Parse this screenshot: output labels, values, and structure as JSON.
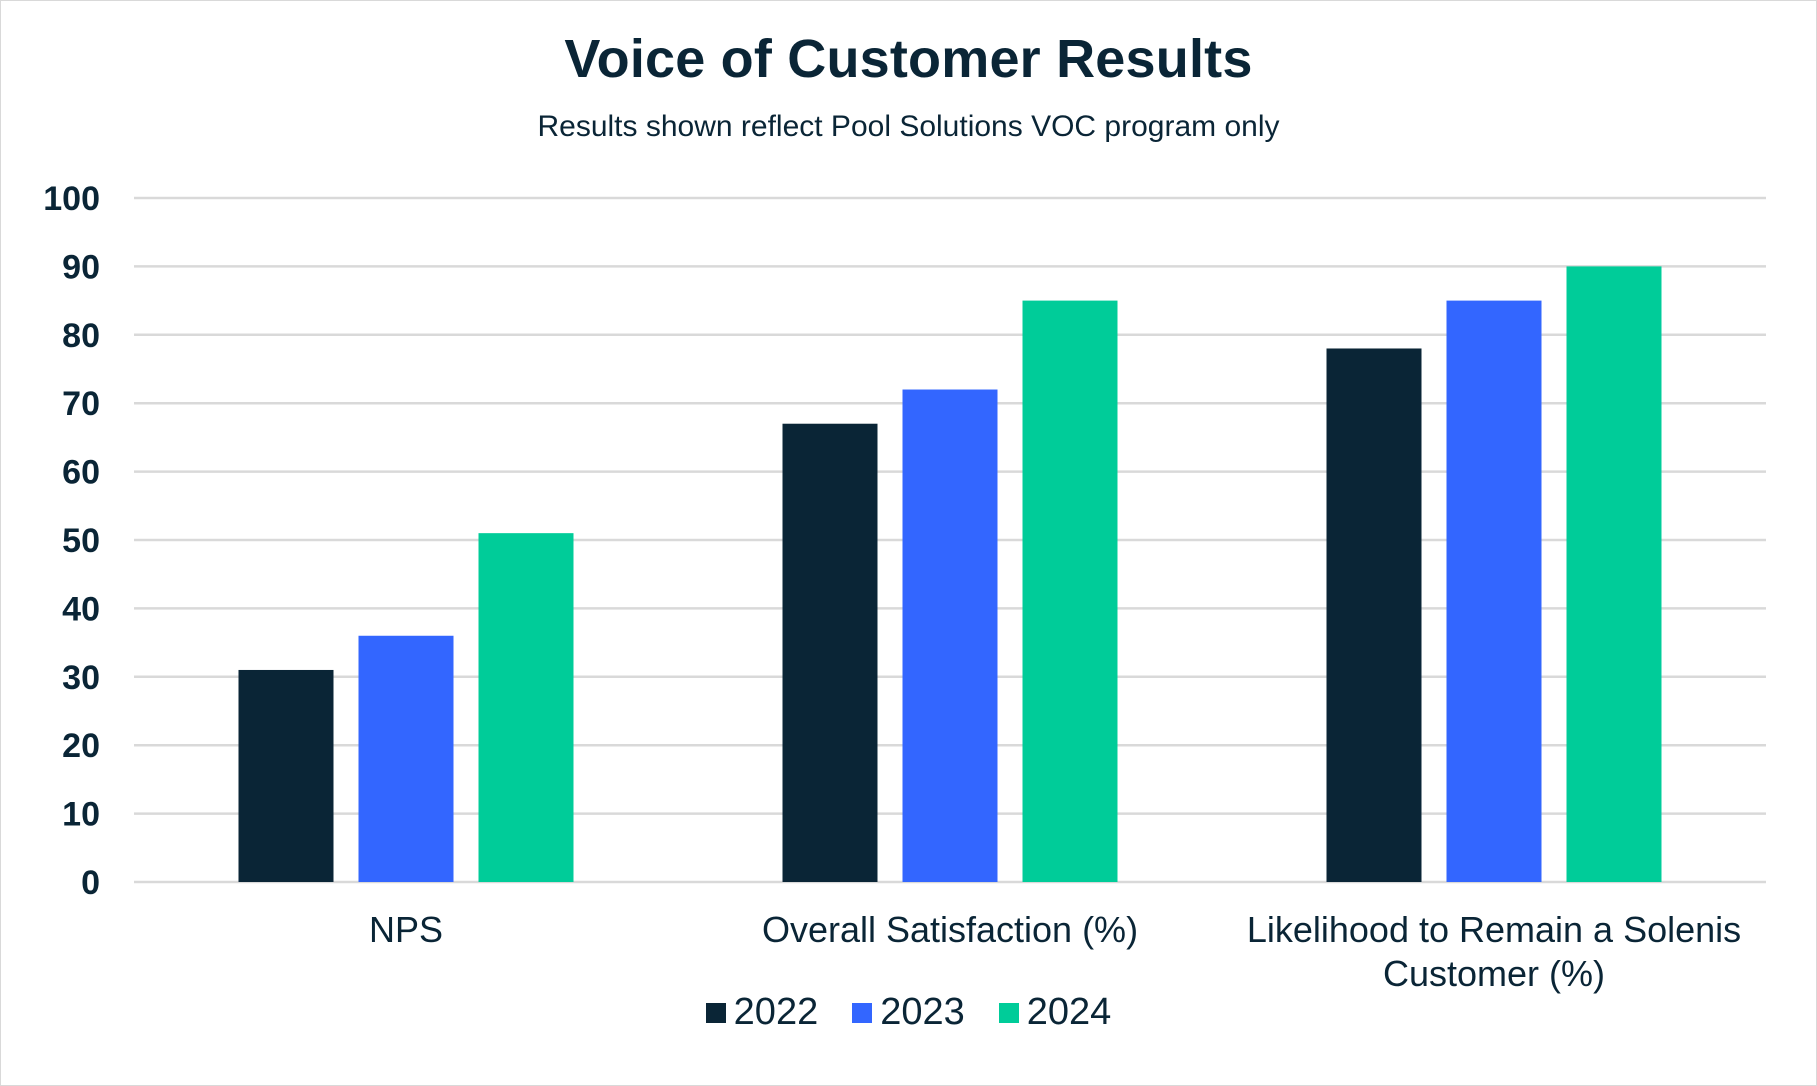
{
  "chart_data": {
    "type": "bar",
    "title": "Voice of Customer Results",
    "subtitle": "Results shown reflect Pool Solutions VOC program only",
    "categories": [
      "NPS",
      "Overall Satisfaction (%)",
      "Likelihood to Remain a Solenis Customer (%)"
    ],
    "category_label_lines": [
      [
        "NPS"
      ],
      [
        "Overall Satisfaction (%)"
      ],
      [
        "Likelihood to Remain a Solenis",
        "Customer (%)"
      ]
    ],
    "series": [
      {
        "name": "2022",
        "color": "#0a2536",
        "values": [
          31,
          67,
          78
        ]
      },
      {
        "name": "2023",
        "color": "#3366ff",
        "values": [
          36,
          72,
          85
        ]
      },
      {
        "name": "2024",
        "color": "#00cc99",
        "values": [
          51,
          85,
          90
        ]
      }
    ],
    "ylim": [
      0,
      100
    ],
    "yticks": [
      "0",
      "10",
      "20",
      "30",
      "40",
      "50",
      "60",
      "70",
      "80",
      "90",
      "100"
    ],
    "grid": true,
    "legend_position": "bottom"
  }
}
